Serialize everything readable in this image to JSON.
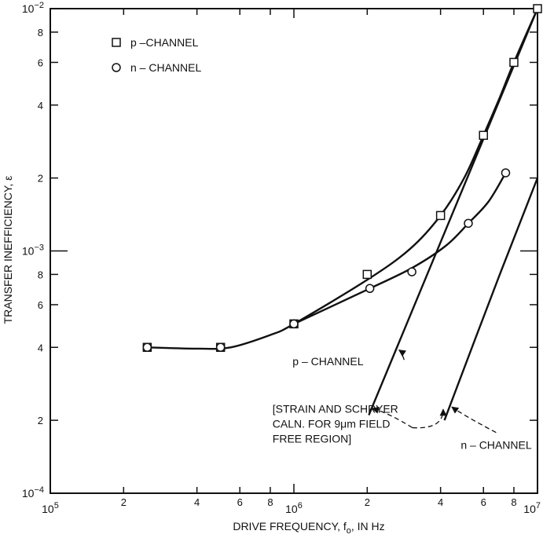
{
  "chart_data": {
    "type": "scatter",
    "x_scale": "log",
    "y_scale": "log",
    "xlim": [
      100000,
      10000000
    ],
    "ylim": [
      0.0001,
      0.01
    ],
    "grid": false,
    "xlabel": "DRIVE FREQUENCY, f",
    "xlabel_sub": "o",
    "xlabel_tail": ", IN Hz",
    "ylabel": "TRANSFER INEFFICIENCY, ε",
    "x_ticks": [
      {
        "value": 100000,
        "base": "10",
        "exp": "5"
      },
      {
        "value": 200000,
        "label": "2"
      },
      {
        "value": 400000,
        "label": "4"
      },
      {
        "value": 600000,
        "label": "6"
      },
      {
        "value": 800000,
        "label": "8"
      },
      {
        "value": 1000000,
        "base": "10",
        "exp": "6"
      },
      {
        "value": 2000000,
        "label": "2"
      },
      {
        "value": 4000000,
        "label": "4"
      },
      {
        "value": 6000000,
        "label": "6"
      },
      {
        "value": 8000000,
        "label": "8"
      },
      {
        "value": 10000000,
        "base": "10",
        "exp": "7"
      }
    ],
    "y_ticks": [
      {
        "value": 0.0001,
        "base": "10",
        "exp": "−4"
      },
      {
        "value": 0.0002,
        "label": "2"
      },
      {
        "value": 0.0004,
        "label": "4"
      },
      {
        "value": 0.0006,
        "label": "6"
      },
      {
        "value": 0.0008,
        "label": "8"
      },
      {
        "value": 0.001,
        "base": "10",
        "exp": "−3"
      },
      {
        "value": 0.002,
        "label": "2"
      },
      {
        "value": 0.004,
        "label": "4"
      },
      {
        "value": 0.006,
        "label": "6"
      },
      {
        "value": 0.008,
        "label": "8"
      },
      {
        "value": 0.01,
        "base": "10",
        "exp": "−2"
      }
    ],
    "legend": {
      "position": "top-left",
      "entries": [
        {
          "marker": "square",
          "label": "p –CHANNEL"
        },
        {
          "marker": "circle",
          "label": "n – CHANNEL"
        }
      ]
    },
    "series": [
      {
        "name": "p –CHANNEL",
        "marker": "square",
        "points": [
          [
            250000,
            0.0004
          ],
          [
            500000,
            0.0004
          ],
          [
            1000000,
            0.0005
          ],
          [
            2000000,
            0.0008
          ],
          [
            4000000,
            0.0014
          ],
          [
            6000000,
            0.003
          ],
          [
            8000000,
            0.006
          ],
          [
            10000000,
            0.01
          ]
        ],
        "curve": [
          [
            250000,
            0.0004
          ],
          [
            400000,
            0.000395
          ],
          [
            550000,
            0.0004
          ],
          [
            800000,
            0.00045
          ],
          [
            1000000,
            0.0005
          ],
          [
            2000000,
            0.00076
          ],
          [
            3000000,
            0.00102
          ],
          [
            4000000,
            0.0014
          ],
          [
            5000000,
            0.002
          ],
          [
            6000000,
            0.003
          ],
          [
            7000000,
            0.0043
          ],
          [
            8000000,
            0.006
          ],
          [
            10000000,
            0.01
          ]
        ]
      },
      {
        "name": "n – CHANNEL",
        "marker": "circle",
        "points": [
          [
            250000,
            0.0004
          ],
          [
            500000,
            0.0004
          ],
          [
            1000000,
            0.0005
          ],
          [
            2050000,
            0.0007
          ],
          [
            3050000,
            0.00082
          ],
          [
            5200000,
            0.0013
          ],
          [
            7400000,
            0.0021
          ]
        ],
        "curve": [
          [
            1000000,
            0.0005
          ],
          [
            2050000,
            0.0007
          ],
          [
            3050000,
            0.00085
          ],
          [
            4200000,
            0.00105
          ],
          [
            5200000,
            0.0013
          ],
          [
            6300000,
            0.0016
          ],
          [
            7400000,
            0.0021
          ]
        ]
      },
      {
        "name": "p – CHANNEL",
        "style": "calculated-line",
        "curve": [
          [
            2030000,
            0.00021
          ],
          [
            10000000,
            0.01
          ]
        ]
      },
      {
        "name": "n – CHANNEL",
        "style": "calculated-line",
        "curve": [
          [
            4150000,
            0.0002
          ],
          [
            7000000,
            0.0008
          ],
          [
            10000000,
            0.002
          ]
        ]
      }
    ],
    "annotations": [
      {
        "id": "p",
        "text": "p – CHANNEL",
        "text_at": [
          1180000,
          0.00035
        ],
        "arrow_to": [
          2700000,
          0.00039
        ]
      },
      {
        "id": "n",
        "text": "n – CHANNEL",
        "text_at": [
          5100000,
          0.000158
        ],
        "arrow_to": [
          4450000,
          0.000227
        ]
      },
      {
        "id": "bracket",
        "lines": [
          "[STRAIN AND SCHRYER",
          "CALN. FOR 9μm  FIELD",
          "FREE REGION]"
        ],
        "text_at": [
          880000,
          0.000223
        ],
        "arrows_to": [
          [
            2100000,
            0.000224
          ],
          [
            4100000,
            0.000222
          ]
        ]
      }
    ]
  }
}
